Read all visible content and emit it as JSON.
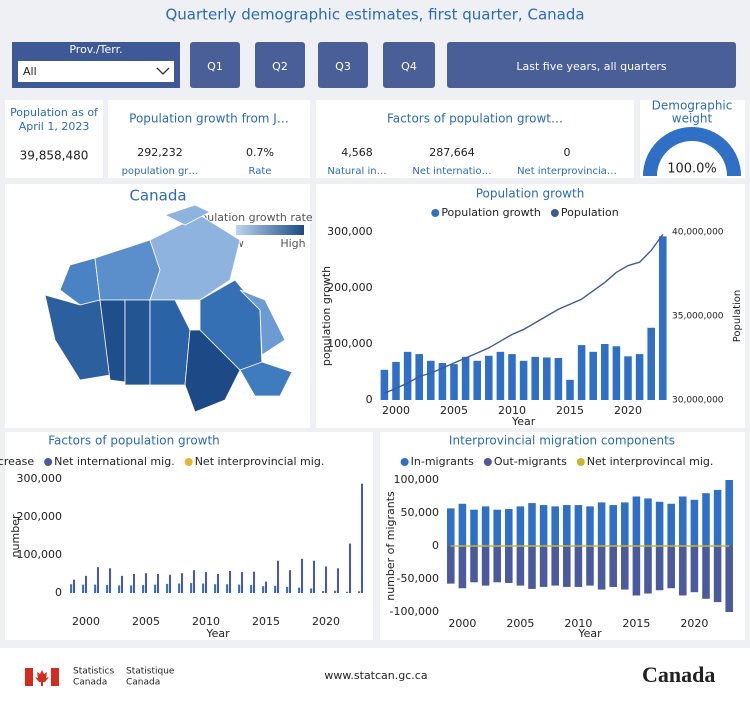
{
  "header": {
    "title": "Quarterly demographic estimates, first quarter, Canada"
  },
  "filters": {
    "slicer_label": "Prov./Terr.",
    "slicer_value": "All",
    "buttons": [
      "Q1",
      "Q2",
      "Q3",
      "Q4",
      "Last five years, all quarters"
    ]
  },
  "cards": {
    "population": {
      "title": [
        "Population as of",
        "April 1, 2023"
      ],
      "value": "39,858,480"
    },
    "growth": {
      "title": "Population growth from J…",
      "items": [
        {
          "value": "292,232",
          "label": "population gr…"
        },
        {
          "value": "0.7%",
          "label": "Rate"
        }
      ]
    },
    "factors": {
      "title": "Factors of population growt…",
      "items": [
        {
          "value": "4,568",
          "label": "Natural in…"
        },
        {
          "value": "287,664",
          "label": "Net internatio…"
        },
        {
          "value": "0",
          "label": "Net interprovincia…"
        }
      ]
    },
    "weight": {
      "title": [
        "Demographic",
        "weight"
      ],
      "value": 100,
      "label": "100.0%",
      "color": "#2f6fc6"
    }
  },
  "map": {
    "title": "Canada",
    "legend_title": "Population growth rate",
    "legend_low": "Low",
    "legend_high": "High"
  },
  "chart_data": [
    {
      "type": "combo",
      "title": "Population growth",
      "x": [
        1999,
        2000,
        2001,
        2002,
        2003,
        2004,
        2005,
        2006,
        2007,
        2008,
        2009,
        2010,
        2011,
        2012,
        2013,
        2014,
        2015,
        2016,
        2017,
        2018,
        2019,
        2020,
        2021,
        2022,
        2023
      ],
      "xlim": [
        1998.5,
        2023.5
      ],
      "xticks": [
        2000,
        2005,
        2010,
        2015,
        2020
      ],
      "xlabel": "Year",
      "ylabel": "population growth",
      "y2label": "Population",
      "ylim": [
        0,
        300000
      ],
      "yticks": [
        0,
        {
          "value": 100000,
          "label": "100,000"
        },
        {
          "value": 200000,
          "label": "200,000"
        },
        {
          "value": 300000,
          "label": "300,000"
        }
      ],
      "y2lim": [
        30000000,
        40000000
      ],
      "y2ticks": [
        {
          "value": 30000000,
          "label": "30,000,000"
        },
        {
          "value": 35000000,
          "label": "35,000,000"
        },
        {
          "value": 40000000,
          "label": "40,000,000"
        }
      ],
      "legend": "top",
      "series": [
        {
          "name": "Population growth",
          "color": "#2f6fc6",
          "values": [
            54000,
            68000,
            86000,
            82000,
            70000,
            66000,
            64000,
            77000,
            70000,
            79000,
            86000,
            82000,
            70000,
            77000,
            76000,
            75000,
            36000,
            98000,
            86000,
            100000,
            96000,
            78000,
            82000,
            129000,
            292232
          ]
        },
        {
          "name": "Population",
          "color": "#3d5a98",
          "axis": "y2",
          "mark": "line",
          "values": [
            30400000,
            30700000,
            31000000,
            31400000,
            31600000,
            31900000,
            32200000,
            32500000,
            32800000,
            33100000,
            33500000,
            33900000,
            34200000,
            34600000,
            35000000,
            35400000,
            35700000,
            36000000,
            36500000,
            37000000,
            37600000,
            38000000,
            38200000,
            38900000,
            39858480
          ]
        }
      ]
    },
    {
      "type": "bar",
      "title": "Factors of population growth",
      "x": [
        1999,
        2000,
        2001,
        2002,
        2003,
        2004,
        2005,
        2006,
        2007,
        2008,
        2009,
        2010,
        2011,
        2012,
        2013,
        2014,
        2015,
        2016,
        2017,
        2018,
        2019,
        2020,
        2021,
        2022,
        2023
      ],
      "xlim": [
        1998.5,
        2023.5
      ],
      "xticks": [
        2000,
        2005,
        2010,
        2015,
        2020
      ],
      "xlabel": "Year",
      "ylabel": "number",
      "ylim": [
        0,
        300000
      ],
      "yticks": [
        0,
        {
          "value": 100000,
          "label": "100,000"
        },
        {
          "value": 200000,
          "label": "200,000"
        },
        {
          "value": 300000,
          "label": "300,000"
        }
      ],
      "legend": "top",
      "series": [
        {
          "name": "Natural increase",
          "color": "#2f6fc6",
          "values": [
            23000,
            22000,
            22000,
            21000,
            20000,
            20000,
            21000,
            22000,
            24000,
            25000,
            26000,
            25000,
            23000,
            23000,
            22000,
            21000,
            18000,
            19000,
            16000,
            14000,
            12000,
            5000,
            6000,
            3000,
            4568
          ]
        },
        {
          "name": "Net international mig.",
          "color": "#4a5a9c",
          "values": [
            35000,
            45000,
            68000,
            65000,
            45000,
            50000,
            52000,
            50000,
            48000,
            52000,
            60000,
            55000,
            50000,
            58000,
            55000,
            56000,
            30000,
            85000,
            60000,
            90000,
            85000,
            70000,
            65000,
            130000,
            287664
          ]
        },
        {
          "name": "Net interprovincial mig.",
          "color": "#e8b52c",
          "values": [
            0,
            0,
            0,
            0,
            0,
            0,
            0,
            0,
            0,
            0,
            0,
            0,
            0,
            0,
            0,
            0,
            0,
            0,
            0,
            0,
            0,
            0,
            0,
            0,
            0
          ]
        }
      ]
    },
    {
      "type": "bar",
      "title": "Interprovincial migration components",
      "x": [
        1999,
        2000,
        2001,
        2002,
        2003,
        2004,
        2005,
        2006,
        2007,
        2008,
        2009,
        2010,
        2011,
        2012,
        2013,
        2014,
        2015,
        2016,
        2017,
        2018,
        2019,
        2020,
        2021,
        2022,
        2023
      ],
      "xlim": [
        1998.5,
        2023.5
      ],
      "xticks": [
        2000,
        2005,
        2010,
        2015,
        2020
      ],
      "xlabel": "Year",
      "ylabel": "number of migrants",
      "ylim": [
        -100000,
        100000
      ],
      "yticks": [
        {
          "value": -100000,
          "label": "-100,000"
        },
        {
          "value": -50000,
          "label": "-50,000"
        },
        0,
        {
          "value": 50000,
          "label": "50,000"
        },
        {
          "value": 100000,
          "label": "100,000"
        }
      ],
      "legend": "top",
      "stacked": true,
      "series": [
        {
          "name": "In-migrants",
          "color": "#2f6fc6",
          "values": [
            57000,
            64000,
            55000,
            60000,
            55000,
            56000,
            60000,
            65000,
            62000,
            60000,
            62000,
            62000,
            60000,
            66000,
            62000,
            66000,
            75000,
            72000,
            67000,
            64000,
            75000,
            70000,
            80000,
            85000,
            100000
          ]
        },
        {
          "name": "Out-migrants",
          "color": "#4a5a9c",
          "values": [
            -57000,
            -64000,
            -55000,
            -60000,
            -55000,
            -56000,
            -60000,
            -65000,
            -62000,
            -60000,
            -62000,
            -62000,
            -60000,
            -66000,
            -62000,
            -66000,
            -75000,
            -72000,
            -67000,
            -64000,
            -75000,
            -70000,
            -80000,
            -85000,
            -100000
          ]
        },
        {
          "name": "Net interprovincal mig.",
          "color": "#c9b62f",
          "mark": "line",
          "values": [
            0,
            0,
            0,
            0,
            0,
            0,
            0,
            0,
            0,
            0,
            0,
            0,
            0,
            0,
            0,
            0,
            0,
            0,
            0,
            0,
            0,
            0,
            0,
            0,
            0
          ]
        }
      ]
    }
  ],
  "footer": {
    "agency_en": [
      "Statistics",
      "Canada"
    ],
    "agency_fr": [
      "Statistique",
      "Canada"
    ],
    "url": "www.statcan.gc.ca",
    "wordmark": "Canada"
  }
}
